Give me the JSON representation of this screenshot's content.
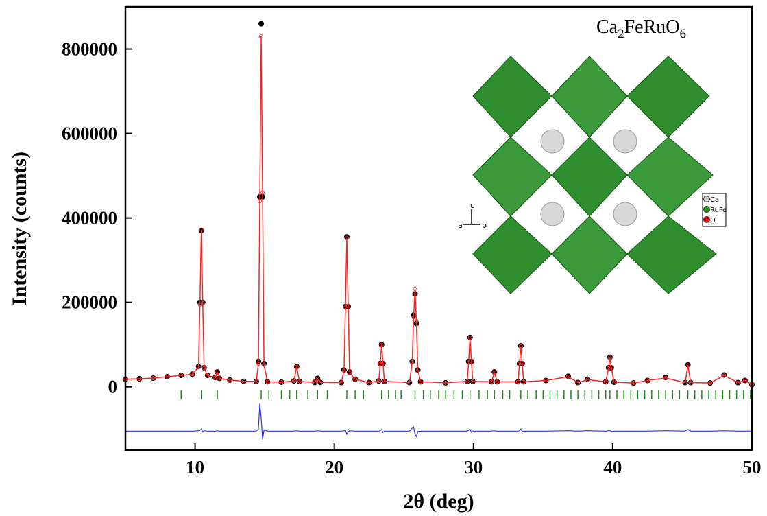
{
  "chart_data": {
    "type": "rietveld",
    "ylabel": "Intensity (counts)",
    "xlabel": "2θ (deg)",
    "annotation": [
      "Ca",
      "2",
      "FeRuO",
      "6"
    ],
    "inset": {
      "legend": [
        {
          "label": "Ca",
          "color": "#c8c8c8"
        },
        {
          "label": "RuFe",
          "color": "#1e9e1e"
        },
        {
          "label": "O",
          "color": "#e01010"
        }
      ],
      "axes": [
        "a",
        "b",
        "c"
      ]
    },
    "xlim": [
      5,
      50
    ],
    "xticks": [
      10,
      20,
      30,
      40,
      50
    ],
    "ylim": [
      -150000,
      900000
    ],
    "yticks": [
      0,
      200000,
      400000,
      600000,
      800000
    ],
    "x": [
      5,
      6,
      7,
      8,
      9,
      9.8,
      10.25,
      10.35,
      10.45,
      10.55,
      10.65,
      10.9,
      11.45,
      11.6,
      11.75,
      12.5,
      13.5,
      14.4,
      14.55,
      14.65,
      14.75,
      14.85,
      14.95,
      15.2,
      16.2,
      17.1,
      17.3,
      17.5,
      18.6,
      18.8,
      19,
      20.5,
      20.7,
      20.8,
      20.9,
      21,
      21.1,
      21.5,
      22.5,
      23.2,
      23.3,
      23.4,
      23.5,
      23.6,
      25.4,
      25.6,
      25.7,
      25.8,
      25.9,
      26,
      26.2,
      28,
      29.55,
      29.65,
      29.75,
      29.85,
      29.95,
      31.3,
      31.5,
      31.7,
      33.2,
      33.3,
      33.4,
      33.5,
      33.6,
      35.2,
      36.8,
      37.5,
      38.2,
      39.5,
      39.7,
      39.8,
      39.9,
      40.1,
      41.5,
      42.5,
      43.8,
      45.2,
      45.4,
      45.6,
      47,
      48,
      49,
      49.5,
      50
    ],
    "series": [
      {
        "color": "#000000",
        "values": [
          18000,
          19000,
          20500,
          24000,
          27000,
          30000,
          48000,
          200000,
          370000,
          200000,
          45000,
          27000,
          22000,
          35000,
          20000,
          16000,
          13000,
          13000,
          60000,
          450000,
          860000,
          450000,
          55000,
          12000,
          11000,
          14000,
          48000,
          13000,
          10500,
          20000,
          10500,
          10000,
          40000,
          190000,
          355000,
          190000,
          35000,
          18000,
          10000,
          14000,
          55000,
          100000,
          55000,
          13000,
          10000,
          60000,
          170000,
          220000,
          150000,
          40000,
          12000,
          9500,
          13000,
          60000,
          117000,
          60000,
          13000,
          12000,
          35000,
          12000,
          12000,
          55000,
          97000,
          55000,
          12000,
          15000,
          25000,
          10000,
          18000,
          12000,
          45000,
          70000,
          45000,
          11000,
          9000,
          15000,
          22000,
          10000,
          52000,
          10000,
          9000,
          28000,
          10000,
          15000,
          5000
        ]
      },
      {
        "color": "#ff2020",
        "values": [
          18000,
          19000,
          20500,
          24000,
          27000,
          30000,
          46000,
          195000,
          372000,
          198000,
          44000,
          27000,
          22000,
          34000,
          20000,
          16000,
          13000,
          13000,
          55000,
          440000,
          830000,
          460000,
          52000,
          12000,
          11000,
          14000,
          47000,
          13000,
          10500,
          19000,
          10500,
          10000,
          38000,
          188000,
          352000,
          192000,
          34000,
          18000,
          10000,
          14000,
          54000,
          99000,
          56000,
          13000,
          10000,
          58000,
          165000,
          232000,
          155000,
          41000,
          12000,
          9500,
          13000,
          58000,
          116000,
          61000,
          13000,
          12000,
          34000,
          12000,
          12000,
          54000,
          96000,
          56000,
          12000,
          15000,
          24000,
          10000,
          17000,
          12000,
          44000,
          69000,
          46000,
          11000,
          9000,
          15000,
          21000,
          10000,
          51000,
          10000,
          9000,
          27000,
          10000,
          15000,
          5000
        ]
      },
      {
        "color": "#3030ff",
        "values": [
          -105000,
          -105000,
          -105000,
          -105000,
          -105000,
          -105000,
          -104000,
          -103000,
          -100000,
          -107000,
          -104000,
          -105000,
          -105000,
          -104000,
          -105000,
          -105000,
          -105000,
          -105000,
          -100000,
          -40000,
          -75000,
          -125000,
          -102000,
          -105000,
          -105000,
          -105000,
          -104000,
          -105000,
          -105000,
          -104000,
          -105000,
          -105000,
          -104000,
          -103000,
          -112000,
          -107000,
          -104000,
          -105000,
          -105000,
          -105000,
          -104000,
          -101000,
          -108000,
          -105000,
          -105000,
          -98000,
          -95000,
          -112000,
          -118000,
          -106000,
          -105000,
          -105000,
          -105000,
          -103000,
          -100000,
          -108000,
          -105000,
          -105000,
          -104000,
          -105000,
          -105000,
          -104000,
          -100000,
          -106000,
          -105000,
          -105000,
          -104000,
          -105000,
          -104000,
          -105000,
          -104000,
          -103000,
          -106000,
          -105000,
          -105000,
          -105000,
          -104000,
          -105000,
          -101000,
          -105000,
          -105000,
          -104000,
          -105000,
          -105000,
          -105000
        ]
      }
    ],
    "reflections": {
      "color": "#1a8c1a",
      "x": [
        9.0,
        10.45,
        11.6,
        14.75,
        15.3,
        16.2,
        16.8,
        17.3,
        18.1,
        18.8,
        19.5,
        20.9,
        21.5,
        22.1,
        23.4,
        23.9,
        24.4,
        24.8,
        25.8,
        26.4,
        26.9,
        27.5,
        28.0,
        28.6,
        29.2,
        29.75,
        30.4,
        31.0,
        31.5,
        32.1,
        32.6,
        33.4,
        33.9,
        34.5,
        35.0,
        35.5,
        36.0,
        36.5,
        37.0,
        37.5,
        38.0,
        38.5,
        39.0,
        39.5,
        39.8,
        40.3,
        40.8,
        41.3,
        41.8,
        42.3,
        42.8,
        43.3,
        43.8,
        44.3,
        44.8,
        45.4,
        45.9,
        46.4,
        46.9,
        47.4,
        47.9,
        48.4,
        48.9,
        49.4,
        49.9
      ]
    }
  }
}
